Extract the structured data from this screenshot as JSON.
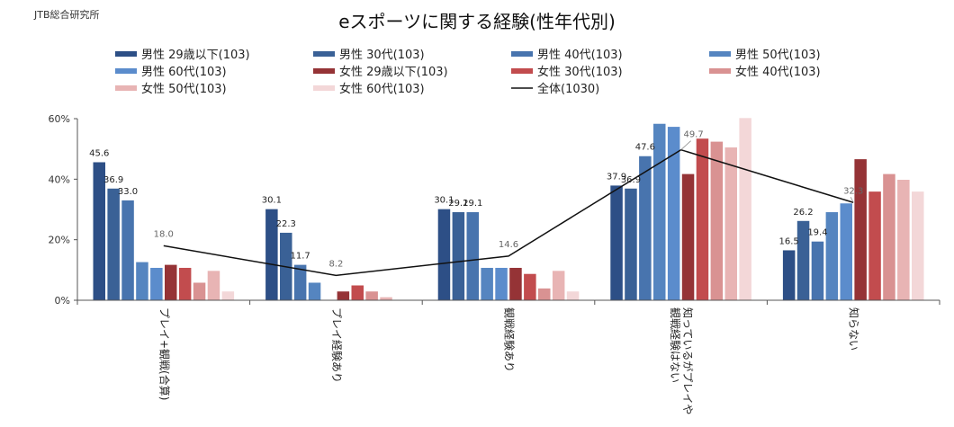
{
  "header": {
    "org": "JTB総合研究所"
  },
  "chart_data": {
    "type": "bar",
    "title": "eスポーツに関する経験(性年代別)",
    "categories": [
      "プレイ+観戦(合算)",
      "プレイ経験あり",
      "観戦経験あり",
      "知っているがプレイや観戦経験はない",
      "知らない"
    ],
    "category_label_lines": [
      [
        "プレイ+観戦(合算)"
      ],
      [
        "プレイ経験あり"
      ],
      [
        "観戦経験あり"
      ],
      [
        "知っているがプレイや",
        "観戦経験はない"
      ],
      [
        "知らない"
      ]
    ],
    "ylim": [
      0,
      60
    ],
    "yticks": [
      0,
      20,
      40,
      60
    ],
    "ytick_labels": [
      "0%",
      "20%",
      "40%",
      "60%"
    ],
    "legend_position": "top",
    "series": [
      {
        "name": "男性 29歳以下(103)",
        "color": "#2d4f86",
        "values": [
          45.6,
          30.1,
          30.1,
          37.9,
          16.5
        ],
        "labels": [
          "45.6",
          "30.1",
          "30.1",
          "37.9",
          "16.5"
        ]
      },
      {
        "name": "男性 30代(103)",
        "color": "#3a6196",
        "values": [
          36.9,
          22.3,
          29.1,
          36.9,
          26.2
        ],
        "labels": [
          "36.9",
          "22.3",
          "29.1",
          "36.9",
          "26.2"
        ]
      },
      {
        "name": "男性 40代(103)",
        "color": "#4874ae",
        "values": [
          33.0,
          11.7,
          29.1,
          47.6,
          19.4
        ],
        "labels": [
          "33.0",
          "11.7",
          "29.1",
          "47.6",
          "19.4"
        ]
      },
      {
        "name": "男性 50代(103)",
        "color": "#5585c0",
        "values": [
          12.6,
          5.8,
          10.7,
          58.3,
          29.1
        ],
        "labels": [
          "",
          "",
          "",
          "",
          ""
        ]
      },
      {
        "name": "男性 60代(103)",
        "color": "#5b8ccc",
        "values": [
          10.7,
          0,
          10.7,
          57.3,
          32.0
        ],
        "labels": [
          "",
          "",
          "",
          "",
          ""
        ]
      },
      {
        "name": "女性 29歳以下(103)",
        "color": "#953336",
        "values": [
          11.7,
          2.9,
          10.7,
          41.7,
          46.6
        ],
        "labels": [
          "",
          "",
          "",
          "",
          ""
        ]
      },
      {
        "name": "女性 30代(103)",
        "color": "#c24c4e",
        "values": [
          10.7,
          4.9,
          8.7,
          53.4,
          35.9
        ],
        "labels": [
          "",
          "",
          "",
          "",
          ""
        ]
      },
      {
        "name": "女性 40代(103)",
        "color": "#d99292",
        "values": [
          5.8,
          2.9,
          3.9,
          52.4,
          41.7
        ],
        "labels": [
          "",
          "",
          "",
          "",
          ""
        ]
      },
      {
        "name": "女性 50代(103)",
        "color": "#e8b4b4",
        "values": [
          9.7,
          1.0,
          9.7,
          50.5,
          39.8
        ],
        "labels": [
          "",
          "",
          "",
          "",
          ""
        ]
      },
      {
        "name": "女性 60代(103)",
        "color": "#f3d7d8",
        "values": [
          2.9,
          0,
          2.9,
          60.2,
          35.9
        ],
        "labels": [
          "",
          "",
          "",
          "",
          ""
        ]
      }
    ],
    "line_series": {
      "name": "全体(1030)",
      "color": "#111111",
      "values": [
        18.0,
        8.2,
        14.6,
        49.7,
        32.3
      ],
      "labels": [
        "18.0",
        "8.2",
        "14.6",
        "49.7",
        "32.3"
      ]
    }
  }
}
